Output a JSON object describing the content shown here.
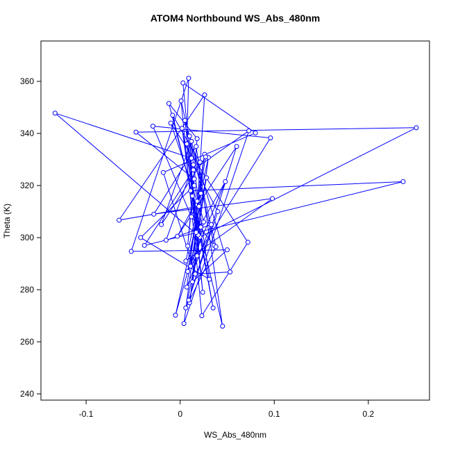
{
  "chart_data": {
    "type": "line",
    "title": "ATOM4 Northbound WS_Abs_480nm",
    "x_label": "WS_Abs_480nm",
    "y_label": "Theta (K)",
    "color": "#0000ff",
    "xlim": [
      -0.148,
      0.265
    ],
    "ylim": [
      237.6,
      375.5
    ],
    "xticks": [
      -0.1,
      0,
      0.1,
      0.2
    ],
    "yticks": [
      240,
      260,
      280,
      300,
      320,
      340,
      360
    ],
    "x": [
      0.012,
      -0.133,
      0.021,
      0.251,
      -0.047,
      0.015,
      0.008,
      0.018,
      -0.012,
      0.022,
      0.01,
      0.03,
      0.006,
      0.098,
      -0.028,
      0.017,
      0.045,
      0.011,
      0.237,
      -0.038,
      0.014,
      0.073,
      0.004,
      0.02,
      -0.065,
      0.026,
      0.013,
      0.05,
      -0.052,
      0.009,
      0.007,
      0.024,
      0.003,
      0.08,
      -0.018,
      0.016,
      0.053,
      0.005,
      0.019,
      -0.005,
      0.028,
      0.011,
      0.096,
      -0.029,
      0.012,
      0.036,
      0.001,
      0.023,
      0.072,
      -0.01,
      0.018,
      0.026,
      0.007,
      0.033,
      -0.015,
      0.014,
      0.04,
      0.009,
      0.06,
      -0.003,
      0.022,
      0.018,
      0.01,
      0.031,
      -0.042,
      0.015,
      0.025,
      0.006,
      0.038,
      0.012,
      -0.02,
      0.027,
      0.008,
      0.048,
      0.017,
      0.002,
      0.035,
      0.013,
      -0.008,
      0.021
    ],
    "y": [
      330.5,
      347.8,
      300.2,
      342.2,
      340.5,
      322.5,
      296.8,
      338.0,
      351.5,
      304.0,
      275.0,
      330.8,
      291.0,
      315.0,
      309.0,
      335.0,
      266.0,
      318.0,
      321.5,
      297.0,
      326.0,
      341.0,
      267.0,
      312.0,
      306.7,
      354.8,
      283.0,
      295.3,
      294.7,
      361.2,
      336.0,
      279.0,
      359.4,
      340.2,
      325.0,
      286.0,
      286.8,
      345.0,
      301.0,
      270.2,
      323.0,
      289.0,
      338.3,
      342.8,
      308.0,
      297.0,
      352.5,
      270.0,
      298.2,
      344.0,
      314.0,
      332.0,
      281.0,
      305.0,
      299.0,
      328.0,
      310.0,
      276.0,
      335.0,
      300.5,
      317.0,
      293.0,
      339.0,
      284.0,
      300.0,
      320.0,
      306.0,
      273.0,
      296.5,
      337.0,
      305.0,
      331.0,
      287.0,
      321.5,
      302.0,
      342.0,
      273.0,
      316.0,
      347.0,
      329.0
    ]
  }
}
